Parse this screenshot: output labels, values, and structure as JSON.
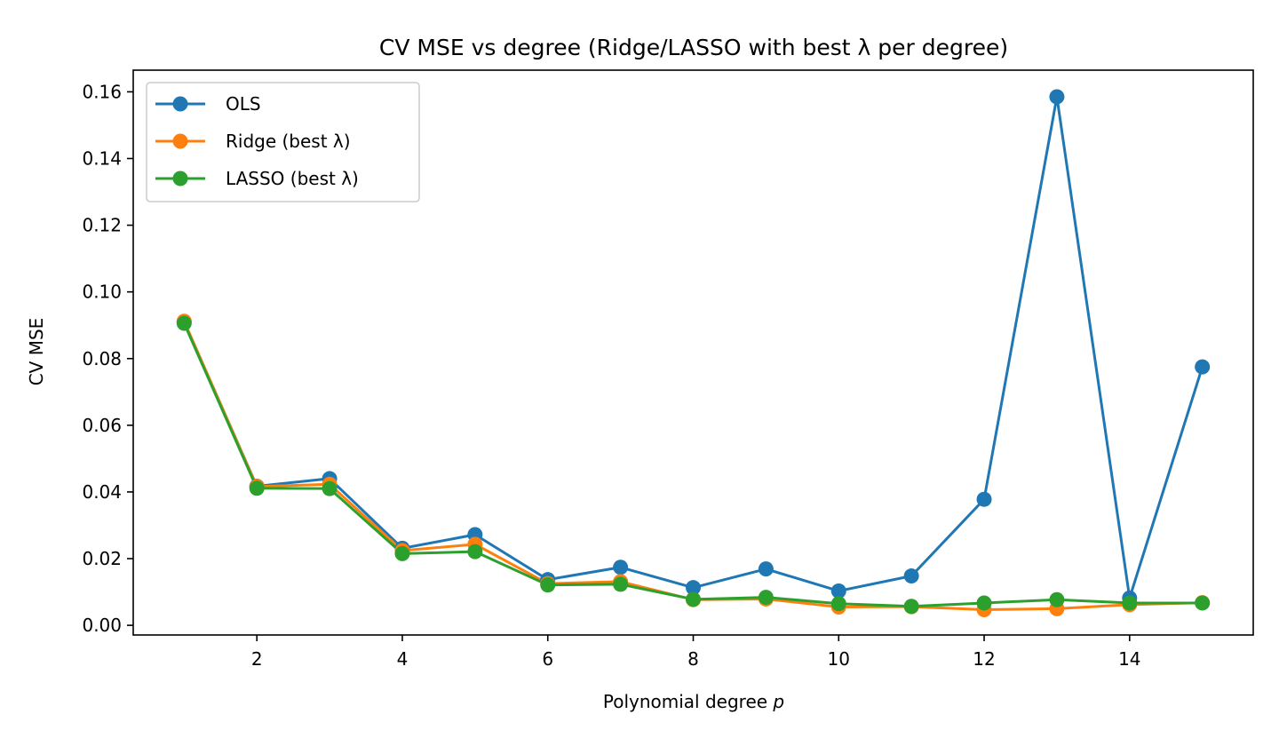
{
  "chart_data": {
    "type": "line",
    "title": "CV MSE vs degree (Ridge/LASSO with best λ per degree)",
    "xlabel_text": "Polynomial degree ",
    "xlabel_var": "p",
    "ylabel": "CV MSE",
    "x": [
      1,
      2,
      3,
      4,
      5,
      6,
      7,
      8,
      9,
      10,
      11,
      12,
      13,
      14,
      15
    ],
    "xlim": [
      0.3,
      15.7
    ],
    "ylim": [
      -0.0029,
      0.1665
    ],
    "x_ticks": [
      2,
      4,
      6,
      8,
      10,
      12,
      14
    ],
    "y_ticks": [
      0.0,
      0.02,
      0.04,
      0.06,
      0.08,
      0.1,
      0.12,
      0.14,
      0.16
    ],
    "y_tick_labels": [
      "0.00",
      "0.02",
      "0.04",
      "0.06",
      "0.08",
      "0.10",
      "0.12",
      "0.14",
      "0.16"
    ],
    "grid": false,
    "legend_position": "upper-left",
    "series": [
      {
        "name": "OLS",
        "color": "#1f77b4",
        "values": [
          0.091,
          0.0417,
          0.044,
          0.0231,
          0.0272,
          0.0137,
          0.0174,
          0.0113,
          0.0169,
          0.0103,
          0.0148,
          0.0378,
          0.1585,
          0.0082,
          0.0775
        ]
      },
      {
        "name": "Ridge (best λ)",
        "color": "#ff7f0e",
        "values": [
          0.0912,
          0.0416,
          0.0423,
          0.0224,
          0.0243,
          0.0125,
          0.0131,
          0.0077,
          0.0079,
          0.0055,
          0.0056,
          0.0047,
          0.005,
          0.0062,
          0.0068
        ]
      },
      {
        "name": "LASSO (best λ)",
        "color": "#2ca02c",
        "values": [
          0.0906,
          0.0411,
          0.041,
          0.0215,
          0.0221,
          0.0121,
          0.0123,
          0.0078,
          0.0084,
          0.0065,
          0.0057,
          0.0067,
          0.0077,
          0.0067,
          0.0067
        ]
      }
    ]
  }
}
